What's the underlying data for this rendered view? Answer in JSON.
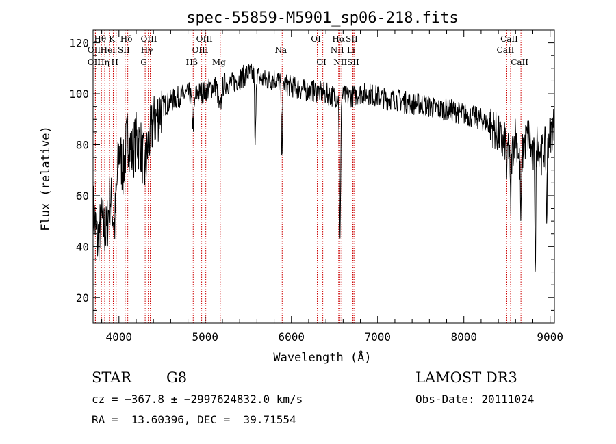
{
  "chart_data": {
    "type": "line",
    "title": "spec-55859-M5901_sp06-218.fits",
    "xlabel": "Wavelength (Å)",
    "ylabel": "Flux (relative)",
    "xlim": [
      3700,
      9050
    ],
    "ylim": [
      10,
      125
    ],
    "xticks": [
      4000,
      5000,
      6000,
      7000,
      8000,
      9000
    ],
    "yticks": [
      20,
      40,
      60,
      80,
      100,
      120
    ],
    "line_color": "#000000",
    "marker_color": "#cc0000",
    "spectrum_anchors": [
      [
        3700,
        55
      ],
      [
        3750,
        42
      ],
      [
        3800,
        50
      ],
      [
        3850,
        45
      ],
      [
        3900,
        60
      ],
      [
        3950,
        48
      ],
      [
        4000,
        78
      ],
      [
        4050,
        70
      ],
      [
        4100,
        84
      ],
      [
        4150,
        76
      ],
      [
        4200,
        82
      ],
      [
        4250,
        80
      ],
      [
        4300,
        70
      ],
      [
        4350,
        82
      ],
      [
        4400,
        88
      ],
      [
        4450,
        92
      ],
      [
        4500,
        95
      ],
      [
        4600,
        97
      ],
      [
        4700,
        99
      ],
      [
        4800,
        100
      ],
      [
        4900,
        100
      ],
      [
        5000,
        101
      ],
      [
        5100,
        103
      ],
      [
        5200,
        104
      ],
      [
        5300,
        104
      ],
      [
        5400,
        106
      ],
      [
        5500,
        108
      ],
      [
        5600,
        107
      ],
      [
        5700,
        105
      ],
      [
        5800,
        106
      ],
      [
        5900,
        104
      ],
      [
        6000,
        103
      ],
      [
        6100,
        102
      ],
      [
        6200,
        101
      ],
      [
        6300,
        101
      ],
      [
        6400,
        100
      ],
      [
        6500,
        99
      ],
      [
        6600,
        99
      ],
      [
        6700,
        99
      ],
      [
        6800,
        100
      ],
      [
        6900,
        100
      ],
      [
        7000,
        99
      ],
      [
        7100,
        98
      ],
      [
        7200,
        98
      ],
      [
        7300,
        97
      ],
      [
        7400,
        96
      ],
      [
        7500,
        96
      ],
      [
        7600,
        95
      ],
      [
        7700,
        94
      ],
      [
        7800,
        94
      ],
      [
        7900,
        93
      ],
      [
        8000,
        92
      ],
      [
        8100,
        91
      ],
      [
        8200,
        90
      ],
      [
        8300,
        88
      ],
      [
        8400,
        84
      ],
      [
        8450,
        80
      ],
      [
        8500,
        82
      ],
      [
        8550,
        75
      ],
      [
        8600,
        85
      ],
      [
        8650,
        72
      ],
      [
        8700,
        80
      ],
      [
        8750,
        84
      ],
      [
        8800,
        74
      ],
      [
        8850,
        82
      ],
      [
        8900,
        76
      ],
      [
        8950,
        80
      ],
      [
        9050,
        88
      ]
    ],
    "absorption_dips": [
      [
        4860,
        12,
        18
      ],
      [
        5170,
        10,
        25
      ],
      [
        5580,
        30,
        8
      ],
      [
        5890,
        25,
        10
      ],
      [
        6563,
        30,
        10
      ],
      [
        6565,
        28,
        10
      ],
      [
        8498,
        15,
        8
      ],
      [
        8542,
        20,
        8
      ],
      [
        8662,
        25,
        8
      ],
      [
        8830,
        45,
        8
      ],
      [
        8960,
        30,
        8
      ]
    ],
    "noise_amplitude": 4.5,
    "line_markers": [
      {
        "label": "Hθ",
        "x": 3797,
        "row": 0
      },
      {
        "label": "OII",
        "x": 3727,
        "row": 1
      },
      {
        "label": "OII",
        "x": 3727,
        "row": 2
      },
      {
        "label": "K",
        "x": 3934,
        "row": 0
      },
      {
        "label": "HeI",
        "x": 3889,
        "row": 1
      },
      {
        "label": "Hη",
        "x": 3835,
        "row": 2
      },
      {
        "label": "Hδ",
        "x": 4102,
        "row": 0
      },
      {
        "label": "SII",
        "x": 4072,
        "row": 1
      },
      {
        "label": "H",
        "x": 3968,
        "row": 2
      },
      {
        "label": "OIII",
        "x": 4363,
        "row": 0
      },
      {
        "label": "Hγ",
        "x": 4340,
        "row": 1
      },
      {
        "label": "G",
        "x": 4304,
        "row": 2
      },
      {
        "label": "OIII",
        "x": 5007,
        "row": 0
      },
      {
        "label": "OIII",
        "x": 4959,
        "row": 1
      },
      {
        "label": "Hβ",
        "x": 4861,
        "row": 2
      },
      {
        "label": "Mg",
        "x": 5175,
        "row": 2
      },
      {
        "label": "Na",
        "x": 5893,
        "row": 1
      },
      {
        "label": "OI",
        "x": 6300,
        "row": 0
      },
      {
        "label": "OI",
        "x": 6364,
        "row": 2
      },
      {
        "label": "Hα",
        "x": 6563,
        "row": 0
      },
      {
        "label": "NII",
        "x": 6548,
        "row": 1
      },
      {
        "label": "NII",
        "x": 6583,
        "row": 2
      },
      {
        "label": "SII",
        "x": 6716,
        "row": 0
      },
      {
        "label": "Li",
        "x": 6708,
        "row": 1
      },
      {
        "label": "SII",
        "x": 6731,
        "row": 2
      },
      {
        "label": "CaII",
        "x": 8542,
        "row": 0
      },
      {
        "label": "CaII",
        "x": 8498,
        "row": 1
      },
      {
        "label": "CaII",
        "x": 8662,
        "row": 2
      }
    ]
  },
  "info": {
    "object_class": "STAR",
    "subclass": "G8",
    "survey": "LAMOST DR3",
    "cz": "cz = −367.8 ± −2997624832.0 km/s",
    "obs_date": "Obs-Date: 20111024",
    "coords": "RA =  13.60396, DEC =  39.71554"
  }
}
